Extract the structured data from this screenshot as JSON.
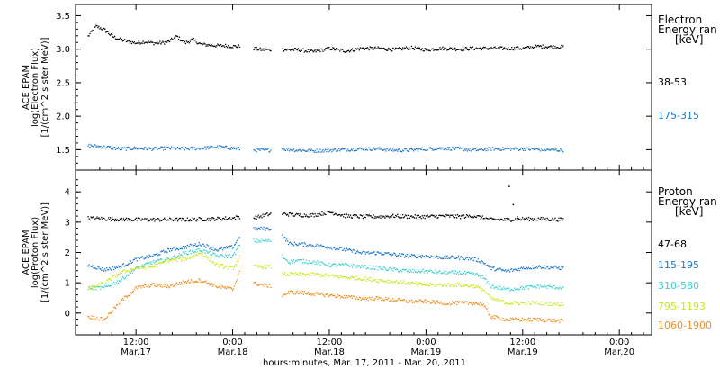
{
  "chart_data": [
    {
      "type": "scatter",
      "panel": "electron",
      "ylabel_lines": [
        "ACE EPAM",
        "log(Electron Flux)",
        "[1/(cm^2 s ster MeV)]"
      ],
      "ylim": [
        1.25,
        3.6
      ],
      "yticks": [
        "1.5",
        "2.0",
        "2.5",
        "3.0",
        "3.5"
      ],
      "legend_title": [
        "Electron",
        "Energy ran",
        "[keV]"
      ],
      "gaps_hours": [
        [
          37.8,
          41.0
        ],
        [
          45.5,
          48.0
        ]
      ],
      "series": [
        {
          "name": "38-53",
          "color": "#000000",
          "x_hours": [
            0,
            2,
            4,
            6,
            8,
            10,
            12,
            14,
            16,
            18,
            20,
            22,
            24,
            26,
            28,
            30,
            32,
            34,
            36,
            37.8,
            41,
            43,
            45.5,
            48,
            52,
            56,
            60,
            64,
            68,
            72,
            76,
            80,
            84,
            88,
            92,
            96,
            100,
            104,
            108,
            112,
            118
          ],
          "values": [
            3.2,
            3.35,
            3.3,
            3.2,
            3.15,
            3.12,
            3.1,
            3.12,
            3.1,
            3.1,
            3.12,
            3.2,
            3.1,
            3.15,
            3.08,
            3.07,
            3.06,
            3.06,
            3.05,
            3.05,
            3.02,
            3.0,
            3.0,
            3.0,
            3.0,
            2.97,
            3.02,
            2.98,
            3.02,
            3.02,
            3.0,
            3.03,
            3.0,
            3.02,
            3.01,
            3.02,
            3.02,
            3.02,
            3.02,
            3.05,
            3.04
          ]
        },
        {
          "name": "175-315",
          "color": "#1e78c8",
          "x_hours": [
            0,
            4,
            8,
            12,
            16,
            20,
            24,
            28,
            32,
            36,
            37.8,
            41,
            45.5,
            48,
            52,
            56,
            60,
            64,
            68,
            72,
            76,
            80,
            84,
            88,
            92,
            96,
            100,
            104,
            108,
            112,
            118
          ],
          "values": [
            1.57,
            1.55,
            1.52,
            1.53,
            1.52,
            1.53,
            1.52,
            1.53,
            1.55,
            1.53,
            1.52,
            1.5,
            1.5,
            1.52,
            1.5,
            1.49,
            1.5,
            1.51,
            1.52,
            1.52,
            1.5,
            1.5,
            1.52,
            1.53,
            1.52,
            1.5,
            1.52,
            1.52,
            1.52,
            1.51,
            1.5
          ]
        }
      ]
    },
    {
      "type": "scatter",
      "panel": "proton",
      "ylabel_lines": [
        "ACE EPAM",
        "log(Proton Flux)",
        "[1/(cm^2 s ster MeV)]"
      ],
      "ylim": [
        -0.6,
        4.6
      ],
      "yticks": [
        "0",
        "1",
        "2",
        "3",
        "4"
      ],
      "legend_title": [
        "Proton",
        "Energy ran",
        "[keV]"
      ],
      "gaps_hours": [
        [
          37.8,
          41.0
        ],
        [
          45.5,
          48.0
        ]
      ],
      "spike": {
        "x_hours": [
          104.5,
          105.5,
          106.5
        ],
        "values": [
          4.2,
          3.6,
          3.2
        ]
      },
      "series": [
        {
          "name": "47-68",
          "color": "#000000",
          "x_hours": [
            0,
            6,
            12,
            18,
            24,
            30,
            36,
            37.8,
            41,
            45.5,
            48,
            52,
            56,
            60,
            64,
            68,
            72,
            76,
            80,
            84,
            88,
            92,
            96,
            100,
            104,
            108,
            112,
            118
          ],
          "values": [
            3.15,
            3.12,
            3.1,
            3.1,
            3.1,
            3.12,
            3.15,
            3.2,
            3.15,
            3.3,
            3.3,
            3.25,
            3.25,
            3.35,
            3.22,
            3.2,
            3.2,
            3.22,
            3.2,
            3.2,
            3.22,
            3.2,
            3.22,
            3.1,
            3.1,
            3.12,
            3.12,
            3.1
          ]
        },
        {
          "name": "115-195",
          "color": "#1e78c8",
          "x_hours": [
            0,
            4,
            8,
            12,
            16,
            20,
            24,
            28,
            32,
            36,
            37.8,
            41,
            45.5,
            48,
            50,
            52,
            56,
            60,
            64,
            68,
            72,
            76,
            80,
            84,
            88,
            92,
            96,
            98,
            100,
            104,
            108,
            112,
            118
          ],
          "values": [
            1.6,
            1.45,
            1.55,
            1.8,
            1.9,
            2.1,
            2.2,
            2.3,
            2.1,
            2.2,
            2.6,
            2.8,
            2.8,
            2.6,
            2.3,
            2.3,
            2.25,
            2.2,
            2.1,
            2.0,
            2.0,
            1.95,
            1.9,
            1.9,
            1.85,
            1.85,
            1.8,
            1.7,
            1.5,
            1.4,
            1.5,
            1.55,
            1.5
          ]
        },
        {
          "name": "310-580",
          "color": "#3ecfcf",
          "x_hours": [
            0,
            4,
            8,
            12,
            16,
            20,
            24,
            28,
            32,
            36,
            37.8,
            41,
            45.5,
            48,
            50,
            52,
            56,
            60,
            64,
            68,
            72,
            76,
            80,
            84,
            88,
            92,
            96,
            98,
            100,
            104,
            108,
            112,
            118
          ],
          "values": [
            0.85,
            0.85,
            1.1,
            1.5,
            1.7,
            1.8,
            2.0,
            2.1,
            1.9,
            1.9,
            2.3,
            2.4,
            2.4,
            1.9,
            1.7,
            1.75,
            1.7,
            1.6,
            1.6,
            1.55,
            1.5,
            1.45,
            1.4,
            1.4,
            1.35,
            1.35,
            1.3,
            1.2,
            0.9,
            0.8,
            0.85,
            0.9,
            0.85
          ]
        },
        {
          "name": "795-1193",
          "color": "#c8e61e",
          "x_hours": [
            0,
            4,
            8,
            12,
            16,
            20,
            24,
            28,
            32,
            36,
            37.8,
            41,
            45.5,
            48,
            50,
            52,
            56,
            60,
            64,
            68,
            72,
            76,
            80,
            84,
            88,
            92,
            96,
            98,
            100,
            104,
            108,
            112,
            118
          ],
          "values": [
            0.8,
            1.0,
            1.35,
            1.5,
            1.55,
            1.75,
            1.8,
            2.0,
            1.6,
            1.5,
            1.9,
            1.55,
            1.55,
            1.3,
            1.3,
            1.3,
            1.3,
            1.25,
            1.2,
            1.15,
            1.1,
            1.05,
            1.0,
            0.95,
            0.95,
            0.95,
            0.9,
            0.8,
            0.5,
            0.35,
            0.35,
            0.35,
            0.3
          ]
        },
        {
          "name": "1060-1900",
          "color": "#f08c1e",
          "x_hours": [
            0,
            4,
            8,
            12,
            16,
            20,
            24,
            28,
            32,
            36,
            37.8,
            41,
            45.5,
            48,
            50,
            52,
            56,
            60,
            64,
            68,
            72,
            76,
            80,
            84,
            88,
            92,
            96,
            98,
            100,
            104,
            108,
            112,
            118
          ],
          "values": [
            -0.1,
            -0.2,
            0.4,
            0.85,
            0.95,
            0.9,
            1.05,
            1.1,
            0.9,
            0.8,
            1.5,
            1.0,
            0.9,
            0.6,
            0.7,
            0.7,
            0.65,
            0.6,
            0.55,
            0.5,
            0.5,
            0.45,
            0.4,
            0.4,
            0.35,
            0.35,
            0.35,
            0.3,
            -0.1,
            -0.2,
            -0.2,
            -0.2,
            -0.25
          ]
        }
      ]
    }
  ],
  "xaxis": {
    "range_hours": [
      -3,
      140
    ],
    "ticks": [
      {
        "x_hours": 12,
        "lines": [
          "12:00",
          "Mar.17"
        ]
      },
      {
        "x_hours": 36,
        "lines": [
          "0:00",
          "Mar.18"
        ]
      },
      {
        "x_hours": 60,
        "lines": [
          "12:00",
          "Mar.18"
        ]
      },
      {
        "x_hours": 84,
        "lines": [
          "0:00",
          "Mar.19"
        ]
      },
      {
        "x_hours": 108,
        "lines": [
          "12:00",
          "Mar.19"
        ]
      },
      {
        "x_hours": 132,
        "lines": [
          "0:00",
          "Mar.20"
        ]
      }
    ],
    "title": "hours:minutes, Mar. 17, 2011 - Mar. 20, 2011"
  }
}
